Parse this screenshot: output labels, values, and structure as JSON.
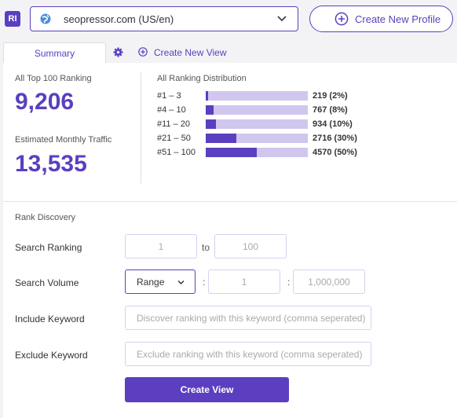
{
  "header": {
    "badge": "RI",
    "domain": "seopressor.com (US/en)",
    "new_profile": "Create New Profile"
  },
  "tabs": {
    "summary": "Summary",
    "create_view": "Create New View"
  },
  "stats": {
    "top100_label": "All Top 100 Ranking",
    "top100_value": "9,206",
    "traffic_label": "Estimated Monthly Traffic",
    "traffic_value": "13,535"
  },
  "distribution": {
    "title": "All Ranking Distribution",
    "rows": [
      {
        "range": "#1 – 3",
        "value": "219 (2%)",
        "fraction": 0.02
      },
      {
        "range": "#4 – 10",
        "value": "767 (8%)",
        "fraction": 0.08
      },
      {
        "range": "#11 – 20",
        "value": "934 (10%)",
        "fraction": 0.1
      },
      {
        "range": "#21 – 50",
        "value": "2716 (30%)",
        "fraction": 0.3
      },
      {
        "range": "#51 – 100",
        "value": "4570 (50%)",
        "fraction": 0.5
      }
    ]
  },
  "discovery": {
    "title": "Rank Discovery",
    "search_ranking_label": "Search Ranking",
    "rank_from": "1",
    "to_label": "to",
    "rank_to": "100",
    "search_volume_label": "Search Volume",
    "volume_mode": "Range",
    "colon": ":",
    "volume_min": "1",
    "volume_max": "1,000,000",
    "include_label": "Include Keyword",
    "include_placeholder": "Discover ranking with this keyword (comma seperated)",
    "exclude_label": "Exclude Keyword",
    "exclude_placeholder": "Exclude ranking with this keyword (comma seperated)",
    "create_view_button": "Create View"
  },
  "colors": {
    "accent": "#5b3fc0",
    "bar_track": "#d1c6ee"
  },
  "icons": [
    "globe-icon",
    "chevron-down-icon",
    "plus-circle-icon",
    "gear-icon"
  ]
}
